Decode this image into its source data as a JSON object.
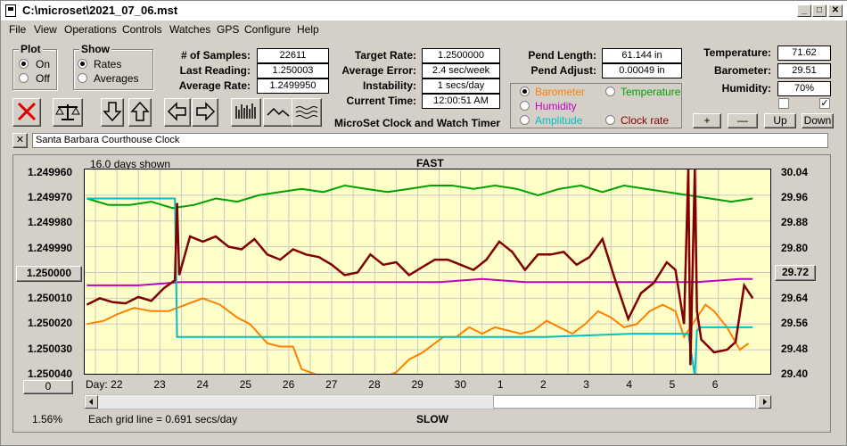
{
  "window": {
    "title": "C:\\microset\\2021_07_06.mst"
  },
  "menu": [
    "File",
    "View",
    "Operations",
    "Controls",
    "Watches",
    "GPS",
    "Configure",
    "Help"
  ],
  "plot_group": {
    "label": "Plot",
    "options": [
      "On",
      "Off"
    ],
    "selected": "On"
  },
  "show_group": {
    "label": "Show",
    "options": [
      "Rates",
      "Averages"
    ],
    "selected": "Rates"
  },
  "stats": {
    "samples_label": "# of Samples:",
    "samples": "22611",
    "last_reading_label": "Last Reading:",
    "last_reading": "1.250003",
    "average_rate_label": "Average Rate:",
    "average_rate": "1.2499950",
    "target_rate_label": "Target Rate:",
    "target_rate": "1.2500000",
    "average_error_label": "Average Error:",
    "average_error": "2.4 sec/week",
    "instability_label": "Instability:",
    "instability": "1 secs/day",
    "current_time_label": "Current Time:",
    "current_time": "12:00:51 AM",
    "pend_length_label": "Pend Length:",
    "pend_length": "61.144 in",
    "pend_adjust_label": "Pend Adjust:",
    "pend_adjust": "0.00049 in",
    "temperature_label": "Temperature:",
    "temperature": "71.62",
    "barometer_label": "Barometer:",
    "barometer": "29.51",
    "humidity_label": "Humidity:",
    "humidity": "70%"
  },
  "app_title": "MicroSet Clock and Watch Timer",
  "overlay_select": {
    "options": [
      {
        "label": "Barometer",
        "color": "#ff8000"
      },
      {
        "label": "Temperature",
        "color": "#00a000"
      },
      {
        "label": "Humidity",
        "color": "#c000c0"
      },
      {
        "label": "Amplitude",
        "color": "#00c0c0"
      },
      {
        "label": "Clock rate",
        "color": "#800000"
      }
    ],
    "selected": "Barometer"
  },
  "adjust_buttons": [
    "+",
    "—",
    "Up",
    "Down"
  ],
  "clock_name": "Santa Barbara Courthouse Clock",
  "chart": {
    "days_shown": "16.0 days shown",
    "top_label": "FAST",
    "bottom_label": "SLOW",
    "grid_note": "Each grid line = 0.691 secs/day",
    "percent": "1.56%",
    "left_button": "1.250000",
    "right_button": "29.72",
    "zero_button": "0",
    "day_label": "Day:"
  },
  "chart_data": {
    "type": "line",
    "x_axis_days": [
      "22",
      "23",
      "24",
      "25",
      "26",
      "27",
      "28",
      "29",
      "30",
      "1",
      "2",
      "3",
      "4",
      "5",
      "6"
    ],
    "y_left_ticks": [
      "1.249960",
      "1.249970",
      "1.249980",
      "1.249990",
      "1.250000",
      "1.250010",
      "1.250020",
      "1.250030",
      "1.250040"
    ],
    "y_right_ticks": [
      "30.04",
      "29.96",
      "29.88",
      "29.80",
      "29.72",
      "29.64",
      "29.56",
      "29.48",
      "29.40"
    ],
    "ylim_left": [
      1.24996,
      1.25004
    ],
    "ylim_right": [
      29.4,
      30.04
    ],
    "xlim": [
      21.25,
      37.25
    ],
    "series": [
      {
        "name": "Barometer",
        "color": "#ff8000",
        "x": [
          21.3,
          21.7,
          22.0,
          22.4,
          22.8,
          23.2,
          23.6,
          24.0,
          24.4,
          24.8,
          25.1,
          25.5,
          25.8,
          26.1,
          26.3,
          26.7,
          27.2,
          27.6,
          28.0,
          28.3,
          28.5,
          28.8,
          29.1,
          29.4,
          29.6,
          29.9,
          30.2,
          30.5,
          30.8,
          31.1,
          31.4,
          31.7,
          32.0,
          32.3,
          32.6,
          32.9,
          33.2,
          33.5,
          33.8,
          34.1,
          34.4,
          34.7,
          35.0,
          35.2,
          35.5,
          35.7,
          35.9,
          36.2,
          36.5,
          36.7
        ],
        "y": [
          29.56,
          29.57,
          29.59,
          29.61,
          29.6,
          29.6,
          29.62,
          29.64,
          29.62,
          29.58,
          29.56,
          29.5,
          29.49,
          29.49,
          29.42,
          29.4,
          29.4,
          29.4,
          29.4,
          29.4,
          29.41,
          29.45,
          29.47,
          29.5,
          29.52,
          29.52,
          29.55,
          29.53,
          29.55,
          29.54,
          29.53,
          29.54,
          29.57,
          29.55,
          29.53,
          29.56,
          29.6,
          29.58,
          29.55,
          29.56,
          29.6,
          29.62,
          29.6,
          29.52,
          29.58,
          29.62,
          29.6,
          29.55,
          29.48,
          29.5
        ]
      },
      {
        "name": "Temperature",
        "color": "#00a000",
        "x": [
          21.3,
          21.8,
          22.3,
          22.8,
          23.3,
          23.8,
          24.3,
          24.8,
          25.3,
          25.8,
          26.3,
          26.8,
          27.3,
          27.8,
          28.3,
          28.8,
          29.3,
          29.8,
          30.3,
          30.8,
          31.3,
          31.8,
          32.3,
          32.8,
          33.3,
          33.8,
          34.3,
          34.8,
          35.3,
          35.8,
          36.3,
          36.8
        ],
        "y": [
          29.95,
          29.93,
          29.93,
          29.94,
          29.92,
          29.93,
          29.95,
          29.94,
          29.96,
          29.97,
          29.98,
          29.97,
          29.99,
          29.98,
          29.97,
          29.98,
          29.99,
          29.99,
          29.98,
          29.99,
          29.98,
          29.96,
          29.98,
          29.99,
          29.97,
          29.99,
          29.98,
          29.97,
          29.96,
          29.95,
          29.94,
          29.95
        ]
      },
      {
        "name": "Humidity",
        "color": "#c000c0",
        "x": [
          21.3,
          22.5,
          23.5,
          24.5,
          25.5,
          26.5,
          27.5,
          28.5,
          29.5,
          30.5,
          31.5,
          32.5,
          33.5,
          34.5,
          35.5,
          36.5,
          36.8
        ],
        "y": [
          29.68,
          29.68,
          29.69,
          29.69,
          29.69,
          29.69,
          29.69,
          29.69,
          29.69,
          29.7,
          29.69,
          29.69,
          29.69,
          29.69,
          29.69,
          29.7,
          29.7
        ]
      },
      {
        "name": "Amplitude",
        "color": "#00c0c0",
        "x": [
          21.3,
          23.35,
          23.4,
          23.45,
          24.5,
          26.0,
          28.0,
          30.0,
          32.0,
          34.0,
          35.3,
          35.45,
          35.5,
          35.6,
          35.8,
          36.8
        ],
        "y": [
          29.95,
          29.95,
          29.52,
          29.52,
          29.52,
          29.52,
          29.52,
          29.52,
          29.52,
          29.53,
          29.53,
          29.4,
          29.54,
          29.55,
          29.55,
          29.55
        ]
      },
      {
        "name": "Clock rate",
        "color": "#800000",
        "x": [
          21.3,
          21.6,
          21.9,
          22.2,
          22.5,
          22.8,
          23.1,
          23.35,
          23.4,
          23.45,
          23.7,
          24.0,
          24.3,
          24.6,
          24.9,
          25.2,
          25.5,
          25.8,
          26.1,
          26.4,
          26.7,
          27.0,
          27.3,
          27.6,
          27.9,
          28.2,
          28.5,
          28.8,
          29.1,
          29.4,
          29.7,
          30.0,
          30.3,
          30.6,
          30.9,
          31.2,
          31.5,
          31.8,
          32.1,
          32.4,
          32.7,
          33.0,
          33.3,
          33.6,
          33.9,
          34.2,
          34.5,
          34.8,
          35.0,
          35.2,
          35.3,
          35.35,
          35.45,
          35.5,
          35.6,
          35.9,
          36.2,
          36.4,
          36.6,
          36.8
        ],
        "y": [
          1.2500125,
          1.25001,
          1.2500115,
          1.250012,
          1.2500095,
          1.250011,
          1.250006,
          1.250003,
          1.249973,
          1.250001,
          1.249986,
          1.249988,
          1.249986,
          1.24999,
          1.249991,
          1.249987,
          1.249993,
          1.249995,
          1.249991,
          1.249993,
          1.249994,
          1.249997,
          1.250001,
          1.25,
          1.249993,
          1.249997,
          1.249996,
          1.250001,
          1.249998,
          1.249995,
          1.249995,
          1.249997,
          1.249999,
          1.249995,
          1.249988,
          1.249992,
          1.249999,
          1.249993,
          1.249993,
          1.249992,
          1.249997,
          1.249994,
          1.249987,
          1.250003,
          1.250018,
          1.250008,
          1.250004,
          1.249996,
          1.249999,
          1.25002,
          1.24996,
          1.250036,
          1.24996,
          1.250015,
          1.250026,
          1.250031,
          1.25003,
          1.250027,
          1.250005,
          1.25001
        ]
      }
    ]
  }
}
